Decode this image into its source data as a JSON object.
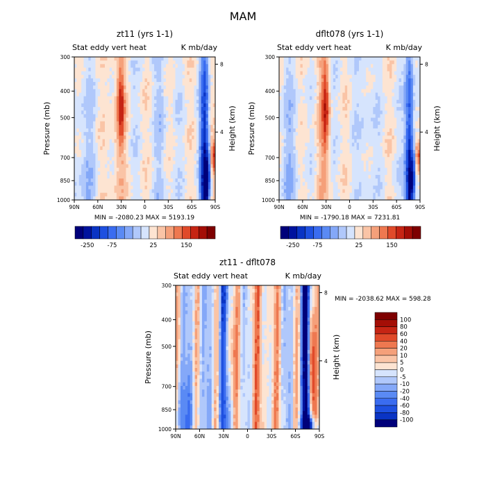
{
  "figure": {
    "title": "MAM"
  },
  "chart_data": [
    {
      "type": "heatmap",
      "title": "zt11 (yrs 1-1)",
      "left_label": "Stat eddy vert heat",
      "right_label": "K mb/day",
      "xlabel": "",
      "ylabel": "Pressure (mb)",
      "ylabel_right": "Height (km)",
      "x_ticks": [
        "90N",
        "60N",
        "30N",
        "0",
        "30S",
        "60S",
        "90S"
      ],
      "y_ticks": [
        "300",
        "400",
        "500",
        "700",
        "850",
        "1000"
      ],
      "y_ticks_right": [
        "8",
        "4"
      ],
      "ylim": [
        1000,
        300
      ],
      "stats": "MIN = -2080.23   MAX = 5193.19",
      "colorbar": {
        "orientation": "horizontal",
        "tick_labels": [
          "-250",
          "-75",
          "25",
          "150"
        ],
        "colors": [
          "#00007a",
          "#00139e",
          "#0a34c4",
          "#1e50e0",
          "#3a6cf0",
          "#5a8af4",
          "#84a8f8",
          "#b0c8fb",
          "#d6e4fd",
          "#fde4d2",
          "#fac4a6",
          "#f5a07a",
          "#ee7850",
          "#e04a2a",
          "#c62514",
          "#a40e06",
          "#7e0000"
        ]
      }
    },
    {
      "type": "heatmap",
      "title": "dflt078 (yrs 1-1)",
      "left_label": "Stat eddy vert heat",
      "right_label": "K mb/day",
      "xlabel": "",
      "ylabel": "Pressure (mb)",
      "ylabel_right": "Height (km)",
      "x_ticks": [
        "90N",
        "60N",
        "30N",
        "0",
        "30S",
        "60S",
        "90S"
      ],
      "y_ticks": [
        "300",
        "400",
        "500",
        "700",
        "850",
        "1000"
      ],
      "y_ticks_right": [
        "8",
        "4"
      ],
      "ylim": [
        1000,
        300
      ],
      "stats": "MIN = -1790.18   MAX = 7231.81",
      "colorbar": {
        "orientation": "horizontal",
        "tick_labels": [
          "-250",
          "-75",
          "25",
          "150"
        ],
        "colors": [
          "#00007a",
          "#00139e",
          "#0a34c4",
          "#1e50e0",
          "#3a6cf0",
          "#5a8af4",
          "#84a8f8",
          "#b0c8fb",
          "#d6e4fd",
          "#fde4d2",
          "#fac4a6",
          "#f5a07a",
          "#ee7850",
          "#e04a2a",
          "#c62514",
          "#a40e06",
          "#7e0000"
        ]
      }
    },
    {
      "type": "heatmap",
      "title": "zt11 - dflt078",
      "left_label": "Stat eddy vert heat",
      "right_label": "K mb/day",
      "xlabel": "",
      "ylabel": "Pressure (mb)",
      "ylabel_right": "Height (km)",
      "x_ticks": [
        "90N",
        "60N",
        "30N",
        "0",
        "30S",
        "60S",
        "90S"
      ],
      "y_ticks": [
        "300",
        "400",
        "500",
        "700",
        "850",
        "1000"
      ],
      "y_ticks_right": [
        "8",
        "4"
      ],
      "ylim": [
        1000,
        300
      ],
      "stats": "MIN = -2038.62   MAX = 598.28",
      "colorbar": {
        "orientation": "vertical",
        "tick_labels": [
          "100",
          "80",
          "60",
          "40",
          "20",
          "10",
          "5",
          "0",
          "-5",
          "-10",
          "-20",
          "-40",
          "-60",
          "-80",
          "-100"
        ],
        "colors": [
          "#7e0000",
          "#a40e06",
          "#c62514",
          "#e04a2a",
          "#ee7850",
          "#f5a07a",
          "#fac4a6",
          "#fde4d2",
          "#d6e4fd",
          "#b0c8fb",
          "#84a8f8",
          "#5a8af4",
          "#3a6cf0",
          "#1e50e0",
          "#0a34c4",
          "#00007a"
        ]
      }
    }
  ]
}
